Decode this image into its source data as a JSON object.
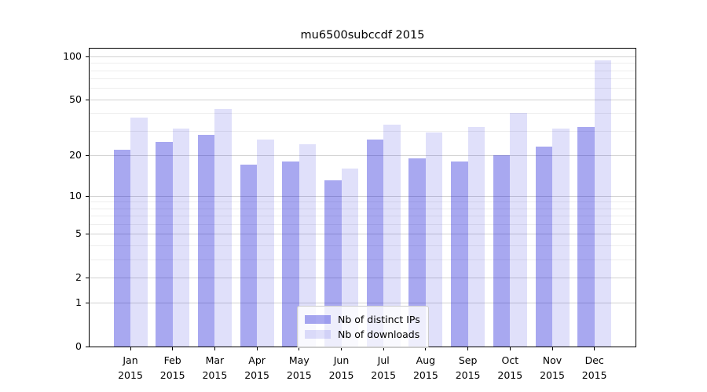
{
  "chart_data": {
    "type": "bar",
    "title": "mu6500subccdf 2015",
    "categories": [
      "Jan 2015",
      "Feb 2015",
      "Mar 2015",
      "Apr 2015",
      "May 2015",
      "Jun 2015",
      "Jul 2015",
      "Aug 2015",
      "Sep 2015",
      "Oct 2015",
      "Nov 2015",
      "Dec 2015"
    ],
    "months": [
      "Jan",
      "Feb",
      "Mar",
      "Apr",
      "May",
      "Jun",
      "Jul",
      "Aug",
      "Sep",
      "Oct",
      "Nov",
      "Dec"
    ],
    "year": "2015",
    "series": [
      {
        "name": "Nb of distinct IPs",
        "color_hex": "#a6a6f0",
        "fill": "rgba(20,20,215,0.37)",
        "values": [
          22,
          25,
          28,
          17,
          18,
          13,
          26,
          19,
          18,
          20,
          23,
          32
        ]
      },
      {
        "name": "Nb of downloads",
        "color_hex": "#dcdcf8",
        "fill": "rgba(20,20,215,0.135)",
        "values": [
          37,
          31,
          43,
          26,
          24,
          16,
          33,
          29,
          32,
          40,
          31,
          94
        ]
      }
    ],
    "xlabel": "",
    "ylabel": "",
    "y_scale": "log1p",
    "y_ticks": [
      0,
      1,
      2,
      5,
      10,
      20,
      50,
      100
    ],
    "y_minor_gridlines": [
      3,
      4,
      6,
      7,
      8,
      9,
      30,
      40,
      60,
      70,
      80,
      90
    ],
    "ylim": [
      0,
      116
    ],
    "grid": true,
    "legend_position": "lower center",
    "gridline_major_color": "#d2d2d2",
    "gridline_minor_color": "#ededed"
  }
}
